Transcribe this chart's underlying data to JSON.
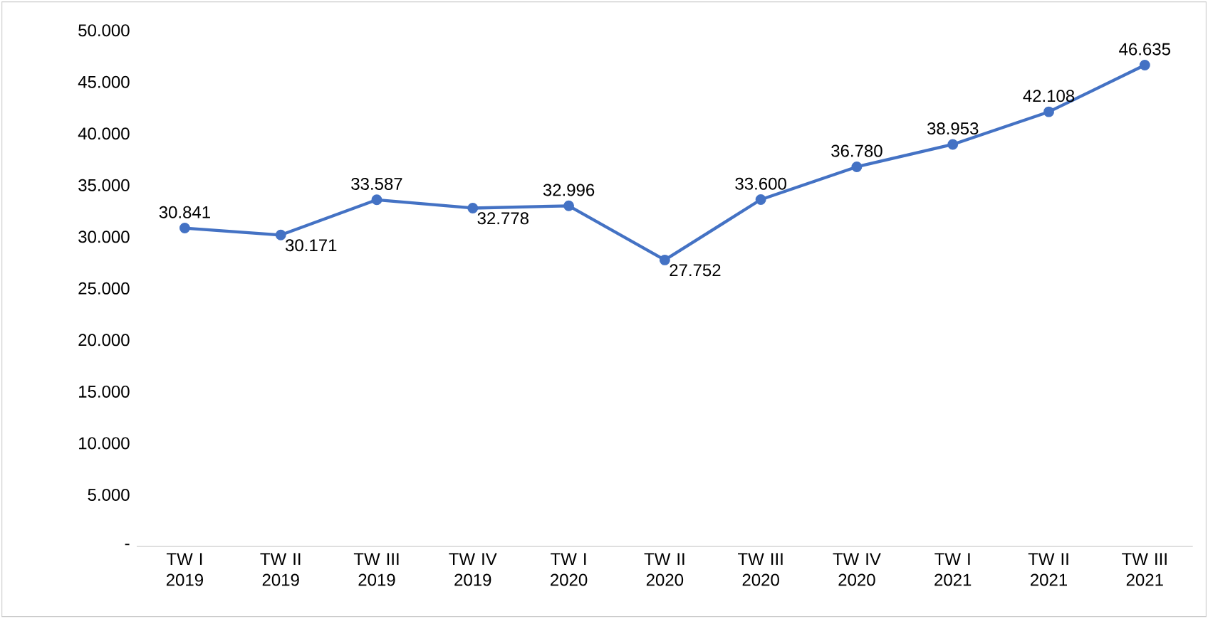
{
  "chart_data": {
    "type": "line",
    "categories": [
      "TW I 2019",
      "TW II 2019",
      "TW III 2019",
      "TW IV 2019",
      "TW I 2020",
      "TW II 2020",
      "TW III 2020",
      "TW IV 2020",
      "TW I 2021",
      "TW II 2021",
      "TW III 2021"
    ],
    "series": [
      {
        "color": "#4472c4",
        "values": [
          30841,
          30171,
          33587,
          32778,
          32996,
          27752,
          33600,
          36780,
          38953,
          42108,
          46635
        ],
        "value_labels": [
          "30.841",
          "30.171",
          "33.587",
          "32.778",
          "32.996",
          "27.752",
          "33.600",
          "36.780",
          "38.953",
          "42.108",
          "46.635"
        ]
      }
    ],
    "ylim": [
      0,
      50000
    ],
    "yticks": [
      {
        "value": 0,
        "label": "-"
      },
      {
        "value": 5000,
        "label": "5.000"
      },
      {
        "value": 10000,
        "label": "10.000"
      },
      {
        "value": 15000,
        "label": "15.000"
      },
      {
        "value": 20000,
        "label": "20.000"
      },
      {
        "value": 25000,
        "label": "25.000"
      },
      {
        "value": 30000,
        "label": "30.000"
      },
      {
        "value": 35000,
        "label": "35.000"
      },
      {
        "value": 40000,
        "label": "40.000"
      },
      {
        "value": 45000,
        "label": "45.000"
      },
      {
        "value": 50000,
        "label": "50.000"
      }
    ],
    "marker": "circle",
    "line_style": "solid",
    "grid": false
  }
}
